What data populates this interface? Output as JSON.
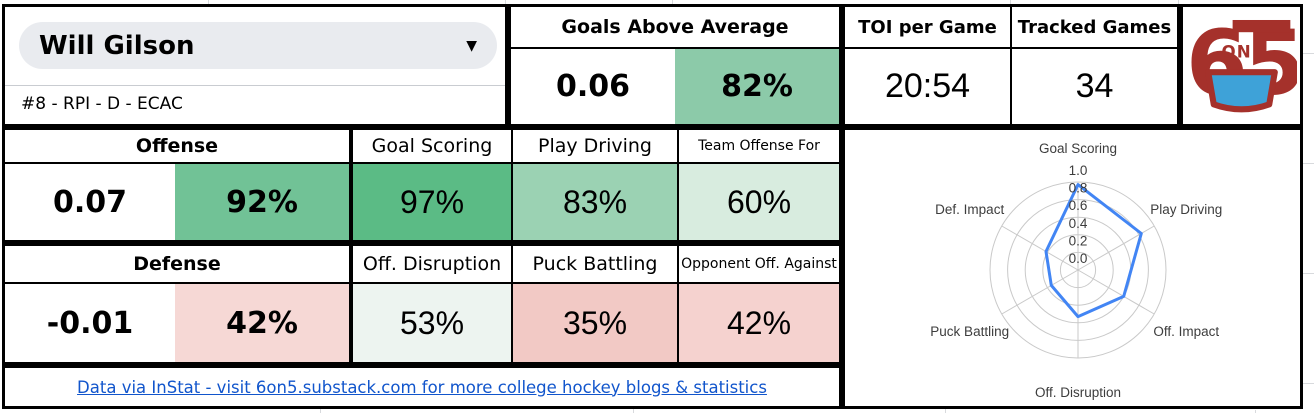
{
  "player": {
    "name": "Will Gilson",
    "details": "#8 - RPI - D - ECAC"
  },
  "icons": {
    "dropdown_caret": "▼"
  },
  "top": {
    "goals_above_average": {
      "label": "Goals Above Average",
      "value": "0.06",
      "percentile": "82%",
      "percentile_bg": "#8ccaa9"
    },
    "toi_per_game": {
      "label": "TOI per Game",
      "value": "20:54"
    },
    "tracked_games": {
      "label": "Tracked Games",
      "value": "34"
    }
  },
  "offense": {
    "label": "Offense",
    "value": "0.07",
    "percentile": "92%",
    "percentile_bg": "#71c296",
    "columns": [
      {
        "label": "Goal Scoring",
        "value": "97%",
        "bg": "#5bbb85"
      },
      {
        "label": "Play Driving",
        "value": "83%",
        "bg": "#9bd2b3"
      },
      {
        "label": "Team Offense For",
        "value": "60%",
        "bg": "#d8ecdf"
      }
    ]
  },
  "defense": {
    "label": "Defense",
    "value": "-0.01",
    "percentile": "42%",
    "percentile_bg": "#f6d8d5",
    "columns": [
      {
        "label": "Off. Disruption",
        "value": "53%",
        "bg": "#edf4f0"
      },
      {
        "label": "Puck Battling",
        "value": "35%",
        "bg": "#f2c9c5"
      },
      {
        "label": "Opponent Off. Against",
        "value": "42%",
        "bg": "#f5d2cf"
      }
    ]
  },
  "footer": {
    "link_text": "Data via InStat - visit 6on5.substack.com for more college hockey blogs & statistics",
    "link_color": "#1155cc"
  },
  "logo": {
    "six": "6",
    "on": "ON",
    "five": "5",
    "red": "#a5312b",
    "blue": "#3ea2d8"
  },
  "chart_data": {
    "type": "radar",
    "categories": [
      "Goal Scoring",
      "Play Driving",
      "Off. Impact",
      "Off. Disruption",
      "Puck Battling",
      "Def. Impact"
    ],
    "values": [
      0.97,
      0.83,
      0.6,
      0.53,
      0.35,
      0.42
    ],
    "ticks": [
      0,
      0.2,
      0.4,
      0.6,
      0.8,
      1.0
    ],
    "rlim": [
      0,
      1
    ],
    "grid": true,
    "line_color": "#4285f4",
    "grid_color": "#c9c9c9",
    "label_color": "#3d3d3d"
  }
}
